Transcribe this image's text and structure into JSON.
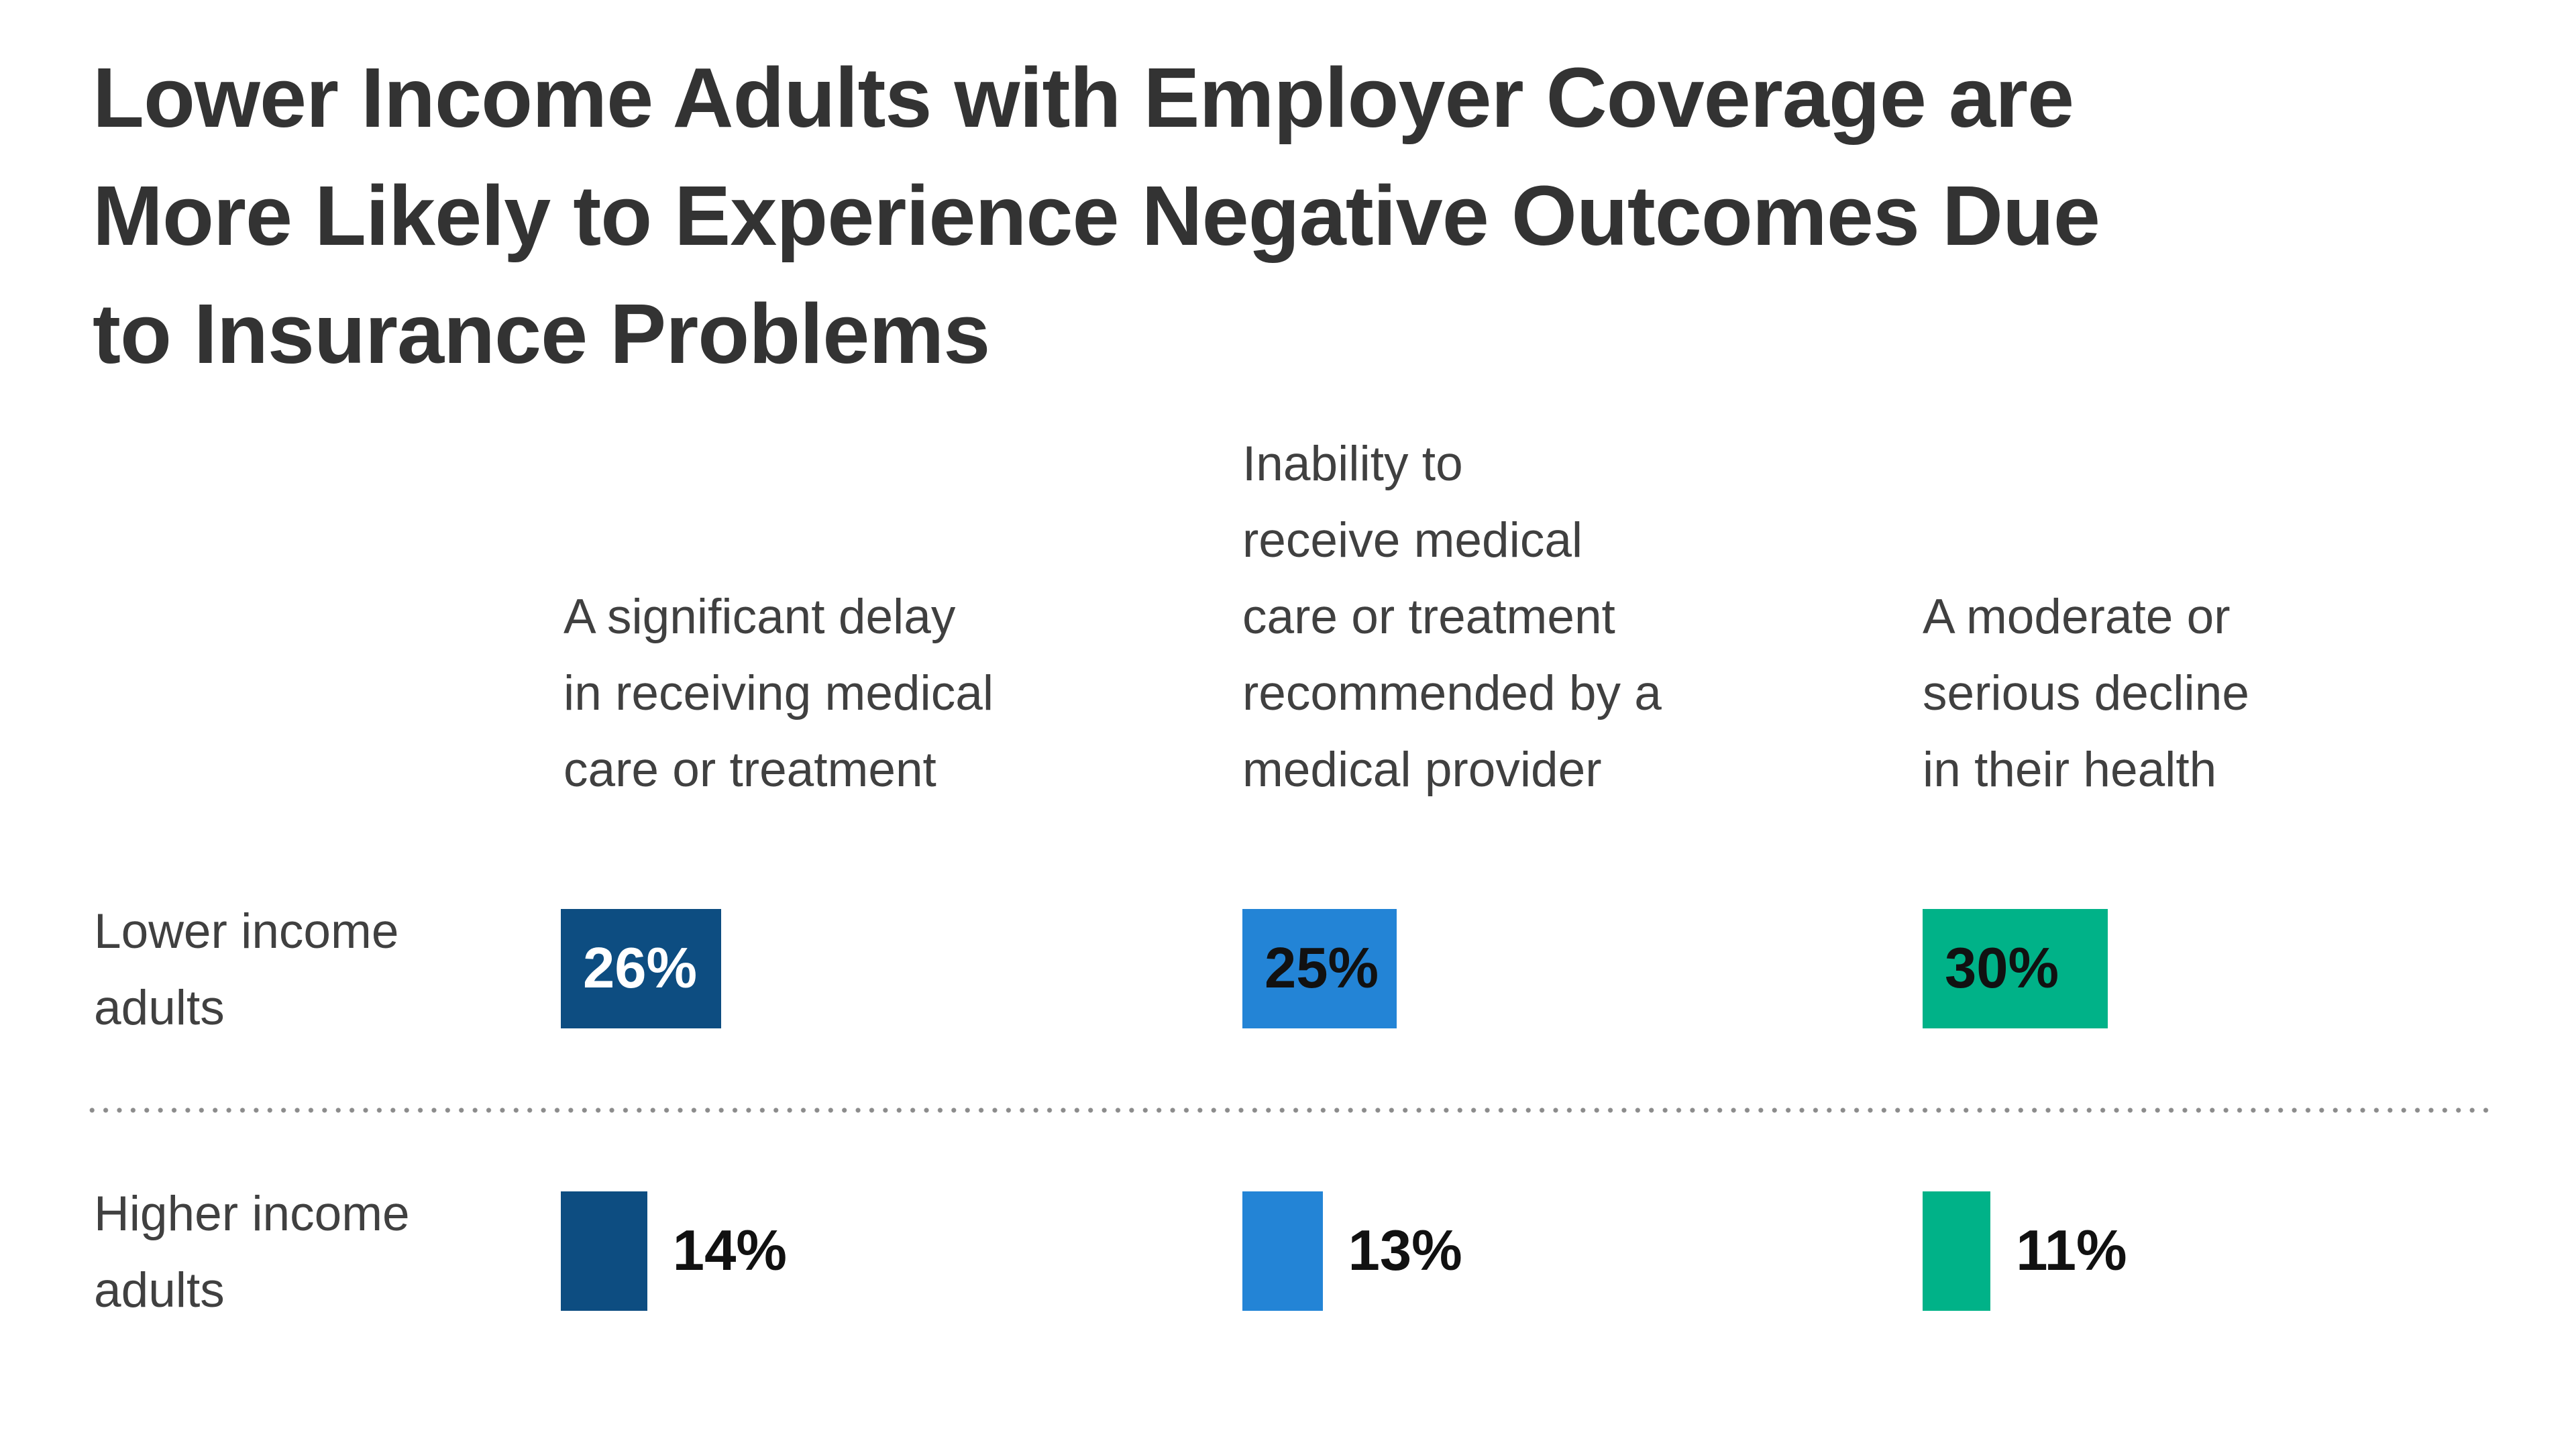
{
  "title": "Lower Income Adults with Employer Coverage are\nMore Likely to Experience Negative Outcomes Due\nto Insurance Problems",
  "chart_data": {
    "type": "bar",
    "orientation": "horizontal",
    "categories": [
      "A significant delay\nin receiving medical\ncare or treatment",
      "Inability to\nreceive medical\ncare or treatment\nrecommended by a\nmedical provider",
      "A moderate or\nserious decline\nin their health"
    ],
    "series": [
      {
        "name": "Lower income\nadults",
        "values": [
          26,
          25,
          30
        ],
        "labels": [
          "26%",
          "25%",
          "30%"
        ]
      },
      {
        "name": "Higher income\nadults",
        "values": [
          14,
          13,
          11
        ],
        "labels": [
          "14%",
          "13%",
          "11%"
        ]
      }
    ],
    "colors": [
      "#0d4d81",
      "#2384d6",
      "#00b288"
    ],
    "inside_label_colors": [
      "#ffffff",
      "#111111",
      "#111111"
    ],
    "unit": "%",
    "legend_position": "left-row-labels",
    "grid": false
  },
  "divider": {
    "style": "dotted",
    "color": "#8c8c8c"
  }
}
